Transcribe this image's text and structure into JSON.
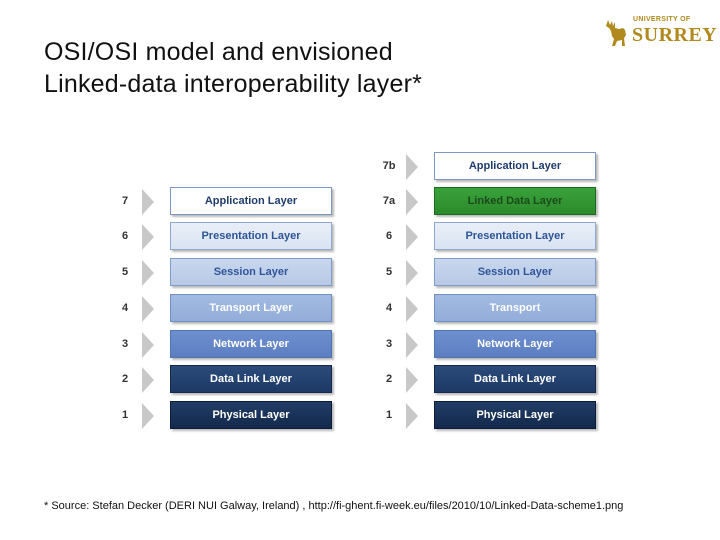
{
  "title": {
    "line1": "OSI/OSI model and envisioned",
    "line2": "Linked-data interoperability layer*"
  },
  "logo": {
    "small": "UNIVERSITY OF",
    "big": "SURREY"
  },
  "left_stack": [
    {
      "number": "7",
      "label": "Application Layer"
    },
    {
      "number": "6",
      "label": "Presentation Layer"
    },
    {
      "number": "5",
      "label": "Session Layer"
    },
    {
      "number": "4",
      "label": "Transport Layer"
    },
    {
      "number": "3",
      "label": "Network Layer"
    },
    {
      "number": "2",
      "label": "Data Link Layer"
    },
    {
      "number": "1",
      "label": "Physical Layer"
    }
  ],
  "right_stack": [
    {
      "number": "7b",
      "label": "Application Layer"
    },
    {
      "number": "7a",
      "label": "Linked Data Layer"
    },
    {
      "number": "6",
      "label": "Presentation Layer"
    },
    {
      "number": "5",
      "label": "Session Layer"
    },
    {
      "number": "4",
      "label": "Transport"
    },
    {
      "number": "3",
      "label": "Network Layer"
    },
    {
      "number": "2",
      "label": "Data Link Layer"
    },
    {
      "number": "1",
      "label": "Physical Layer"
    }
  ],
  "source": "* Source: Stefan Decker (DERI NUI Galway, Ireland) , http://fi-ghent.fi-week.eu/files/2010/10/Linked-Data-scheme1.png",
  "colors": {
    "logo_gold": "#b08a1e",
    "linked_data_green": "#2b8a2b",
    "dark_navy": "#14294d"
  }
}
